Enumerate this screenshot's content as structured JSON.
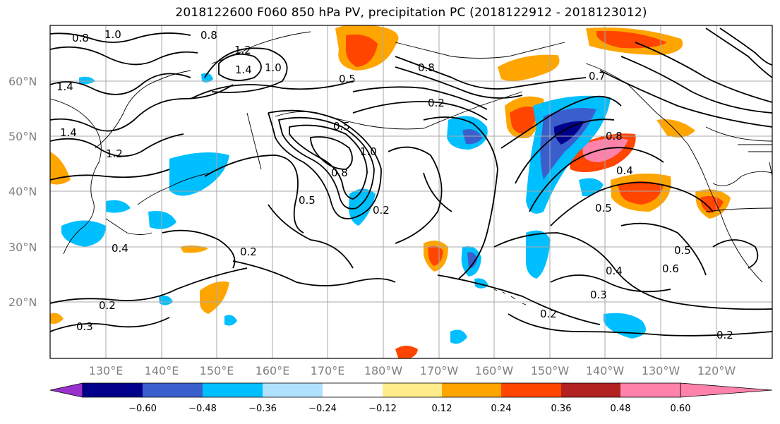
{
  "title": "2018122600 F060 850 hPa PV, precipitation PC (2018122912 - 2018123012)",
  "lat_labels": [
    "60°N",
    "50°N",
    "40°N",
    "30°N",
    "20°N"
  ],
  "lon_labels": [
    "130°E",
    "140°E",
    "150°E",
    "160°E",
    "170°E",
    "180°W",
    "170°W",
    "160°W",
    "150°W",
    "140°W",
    "130°W",
    "120°W"
  ],
  "colorbar": {
    "colors": [
      "#9932cc",
      "#00008b",
      "#3a5fcd",
      "#00bfff",
      "#b0e2ff",
      "#ffffff",
      "#ffec8b",
      "#ffa500",
      "#ff4500",
      "#b22222",
      "#ff82ab"
    ],
    "labels": [
      "−0.60",
      "−0.48",
      "−0.36",
      "−0.24",
      "−0.12",
      "0.12",
      "0.24",
      "0.36",
      "0.48",
      "0.60"
    ]
  },
  "contour_labels": [
    "0.8",
    "1.0",
    "0.8",
    "1.2",
    "1.4",
    "1.4",
    "1.0",
    "0.5",
    "0.8",
    "0.7",
    "1.4",
    "1.2",
    "0.2",
    "0.5",
    "0.8",
    "1.0",
    "0.5",
    "0.2",
    "0.8",
    "0.4",
    "0.5",
    "0.4",
    "0.2",
    "0.5",
    "0.6",
    "0.4",
    "0.3",
    "0.2",
    "0.2",
    "0.2",
    "0.3"
  ]
}
